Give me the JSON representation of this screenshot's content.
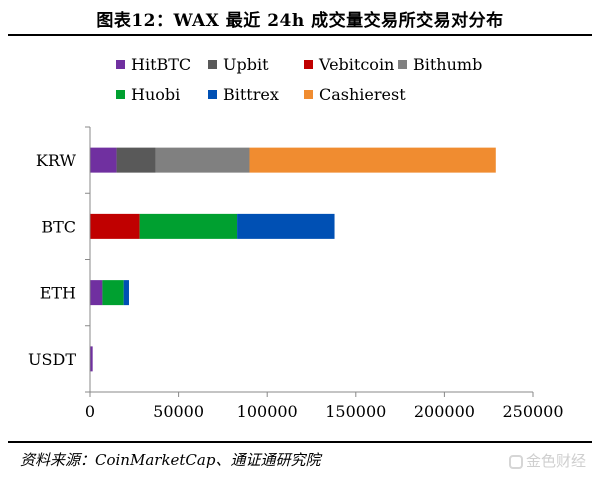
{
  "title": "图表12：WAX 最近 24h 成交量交易所交易对分布",
  "source": "资料来源：CoinMarketCap、通证通研究院",
  "watermark": "金色财经",
  "chart_data": {
    "type": "bar",
    "orientation": "horizontal",
    "stacked": true,
    "categories": [
      "KRW",
      "BTC",
      "ETH",
      "USDT"
    ],
    "series": [
      {
        "name": "HitBTC",
        "color": "#7030a0",
        "values": [
          15000,
          0,
          7000,
          1500
        ]
      },
      {
        "name": "Upbit",
        "color": "#595959",
        "values": [
          22000,
          0,
          0,
          0
        ]
      },
      {
        "name": "Vebitcoin",
        "color": "#c00000",
        "values": [
          0,
          28000,
          0,
          0
        ]
      },
      {
        "name": "Bithumb",
        "color": "#808080",
        "values": [
          53000,
          0,
          0,
          0
        ]
      },
      {
        "name": "Huobi",
        "color": "#00a030",
        "values": [
          0,
          55000,
          12000,
          0
        ]
      },
      {
        "name": "Bittrex",
        "color": "#0050b4",
        "values": [
          0,
          55000,
          3000,
          0
        ]
      },
      {
        "name": "Cashierest",
        "color": "#f08c30",
        "values": [
          139000,
          0,
          0,
          0
        ]
      }
    ],
    "xlim": [
      0,
      250000
    ],
    "xticks": [
      "0",
      "50000",
      "100000",
      "150000",
      "200000",
      "250000"
    ],
    "xlabel": "",
    "ylabel": "",
    "legend_position": "top",
    "grid": false
  }
}
